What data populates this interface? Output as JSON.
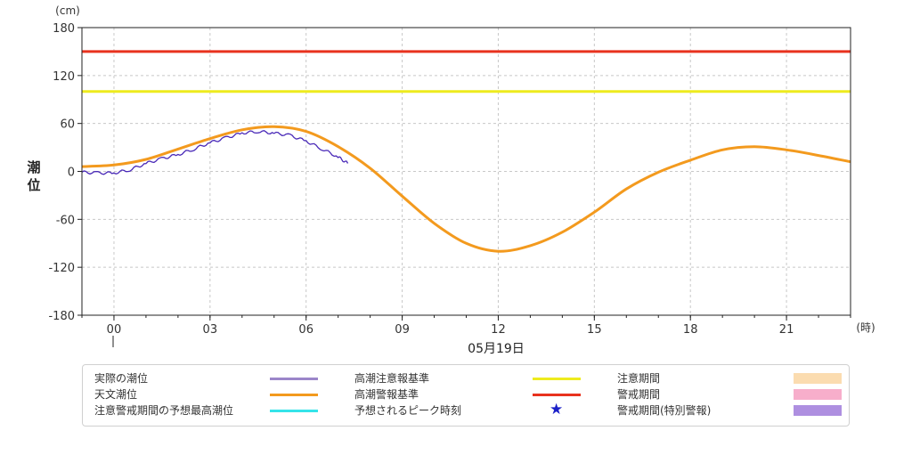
{
  "chart_data": {
    "type": "line",
    "y_unit": "(cm)",
    "ylabel_lines": [
      "潮",
      "位"
    ],
    "x_unit": "(時)",
    "date_label": "05月19日",
    "xlim": [
      -1,
      23
    ],
    "ylim": [
      -180,
      180
    ],
    "y_ticks": [
      180,
      120,
      60,
      0,
      -60,
      -120,
      -180
    ],
    "x_ticks": [
      {
        "value": 0,
        "label": "00"
      },
      {
        "value": 3,
        "label": "03"
      },
      {
        "value": 6,
        "label": "06"
      },
      {
        "value": 9,
        "label": "09"
      },
      {
        "value": 12,
        "label": "12"
      },
      {
        "value": 15,
        "label": "15"
      },
      {
        "value": 18,
        "label": "18"
      },
      {
        "value": 21,
        "label": "21"
      }
    ],
    "grid": true,
    "thresholds": [
      {
        "name": "高潮警報基準",
        "value": 150,
        "color": "#e8321e"
      },
      {
        "name": "高潮注意報基準",
        "value": 100,
        "color": "#eeeb1e"
      }
    ],
    "series": [
      {
        "name": "天文潮位",
        "color": "#f39a1e",
        "x": [
          -1,
          0,
          1,
          2,
          3,
          4,
          5,
          6,
          7,
          8,
          9,
          10,
          11,
          12,
          13,
          14,
          15,
          16,
          17,
          18,
          19,
          20,
          21,
          22,
          23
        ],
        "y": [
          6,
          8,
          15,
          28,
          41,
          52,
          56,
          50,
          31,
          4,
          -31,
          -65,
          -90,
          -100,
          -93,
          -76,
          -51,
          -22,
          -1,
          14,
          27,
          31,
          27,
          20,
          12
        ]
      },
      {
        "name": "実際の潮位",
        "color": "#4a2ab8",
        "noisy": true,
        "x": [
          -1,
          -0.5,
          0,
          0.5,
          1,
          1.5,
          2,
          2.5,
          3,
          3.5,
          4,
          4.5,
          5,
          5.5,
          6,
          6.5,
          7,
          7.3
        ],
        "y": [
          -1,
          -2,
          -2,
          2,
          10,
          16,
          21,
          28,
          36,
          42,
          48,
          50,
          48,
          45,
          38,
          28,
          18,
          10
        ]
      }
    ]
  },
  "legend": {
    "items": [
      {
        "label": "実際の潮位",
        "kind": "line",
        "color": "#9b86c9"
      },
      {
        "label": "高潮注意報基準",
        "kind": "line",
        "color": "#eeeb1e"
      },
      {
        "label": "注意期間",
        "kind": "box",
        "color": "#fbdcb0"
      },
      {
        "label": "天文潮位",
        "kind": "line",
        "color": "#f39a1e"
      },
      {
        "label": "高潮警報基準",
        "kind": "line",
        "color": "#e8321e"
      },
      {
        "label": "警戒期間",
        "kind": "box",
        "color": "#f7aecb"
      },
      {
        "label": "注意警戒期間の予想最高潮位",
        "kind": "line",
        "color": "#35e4e9"
      },
      {
        "label": "予想されるピーク時刻",
        "kind": "star",
        "color": "#1b20c8"
      },
      {
        "label": "警戒期間(特別警報)",
        "kind": "box",
        "color": "#ae8fe0"
      }
    ]
  }
}
